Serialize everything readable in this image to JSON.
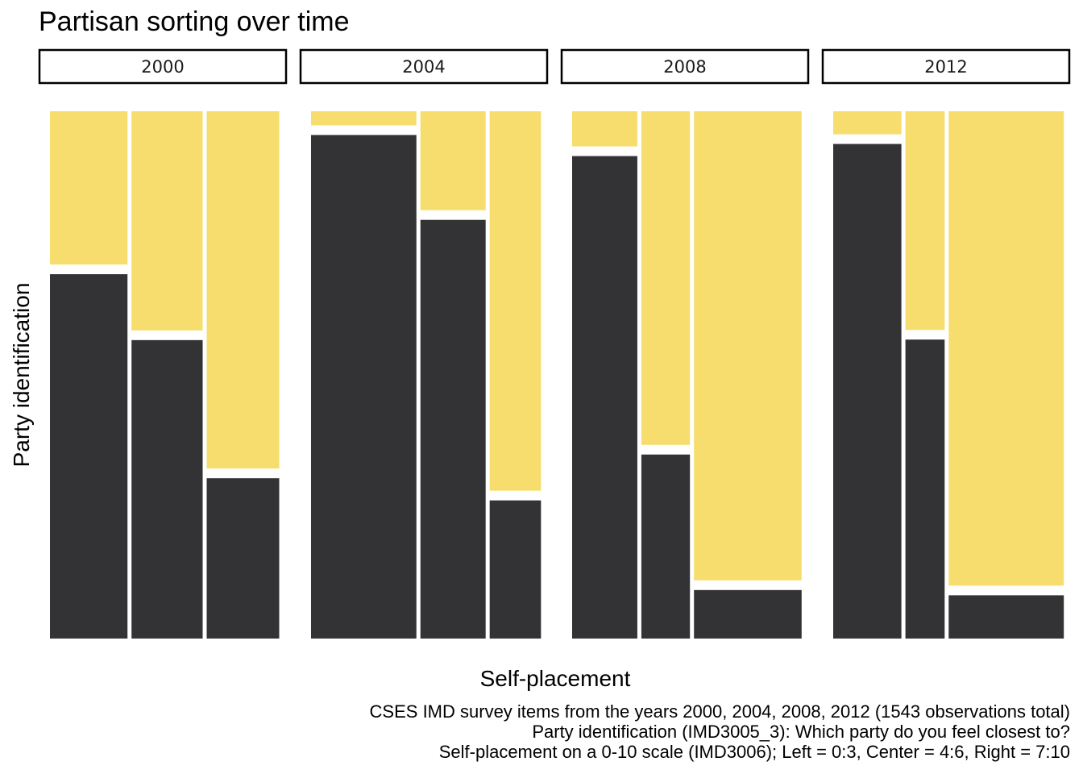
{
  "chart_data": {
    "type": "mosaic",
    "title": "Partisan sorting over time",
    "xlabel": "Self-placement",
    "ylabel": "Party identification",
    "facets": [
      "2000",
      "2004",
      "2008",
      "2012"
    ],
    "x_categories": [
      "Left",
      "Center",
      "Right"
    ],
    "fill_levels": [
      "lower",
      "upper"
    ],
    "colors": {
      "lower": "#333335",
      "upper": "#f7dd6d"
    },
    "panels": [
      {
        "facet": "2000",
        "column_shares": [
          0.34,
          0.312,
          0.318
        ],
        "lower_share": [
          0.691,
          0.566,
          0.304
        ]
      },
      {
        "facet": "2004",
        "column_shares": [
          0.462,
          0.286,
          0.225
        ],
        "lower_share": [
          0.955,
          0.794,
          0.262
        ]
      },
      {
        "facet": "2008",
        "column_shares": [
          0.286,
          0.213,
          0.472
        ],
        "lower_share": [
          0.915,
          0.349,
          0.092
        ]
      },
      {
        "facet": "2012",
        "column_shares": [
          0.299,
          0.172,
          0.505
        ],
        "lower_share": [
          0.938,
          0.567,
          0.082
        ]
      }
    ],
    "caption_lines": [
      "CSES IMD survey items from the years 2000, 2004, 2008, 2012 (1543 observations total)",
      "Party identification (IMD3005_3): Which party do you feel closest to?",
      "Self-placement on a 0-10 scale (IMD3006); Left = 0:3, Center = 4:6, Right = 7:10"
    ],
    "grid": false,
    "legend": "none"
  }
}
